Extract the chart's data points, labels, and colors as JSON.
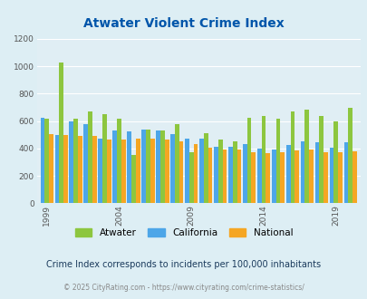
{
  "title": "Atwater Violent Crime Index",
  "subtitle": "Crime Index corresponds to incidents per 100,000 inhabitants",
  "footer": "© 2025 CityRating.com - https://www.cityrating.com/crime-statistics/",
  "years": [
    1999,
    2000,
    2001,
    2002,
    2003,
    2004,
    2005,
    2006,
    2007,
    2008,
    2009,
    2010,
    2011,
    2012,
    2013,
    2014,
    2015,
    2016,
    2017,
    2018,
    2019,
    2020
  ],
  "atwater": [
    620,
    1025,
    615,
    670,
    650,
    620,
    350,
    535,
    530,
    575,
    370,
    510,
    465,
    455,
    625,
    635,
    620,
    670,
    685,
    640,
    600,
    695
  ],
  "california": [
    625,
    500,
    595,
    580,
    470,
    530,
    525,
    535,
    530,
    505,
    470,
    475,
    415,
    410,
    430,
    400,
    390,
    425,
    450,
    445,
    405,
    445
  ],
  "national": [
    507,
    500,
    495,
    490,
    465,
    465,
    470,
    475,
    465,
    455,
    430,
    405,
    390,
    390,
    370,
    365,
    375,
    385,
    395,
    370,
    375,
    380
  ],
  "atwater_color": "#8dc63f",
  "california_color": "#4da6e8",
  "national_color": "#f5a623",
  "bg_color": "#ddeef4",
  "plot_bg_color": "#e0eef4",
  "title_color": "#0055aa",
  "subtitle_color": "#1a3a5c",
  "footer_color": "#888888",
  "ylim": [
    0,
    1200
  ],
  "yticks": [
    0,
    200,
    400,
    600,
    800,
    1000,
    1200
  ],
  "xtick_years": [
    1999,
    2004,
    2009,
    2014,
    2019
  ]
}
